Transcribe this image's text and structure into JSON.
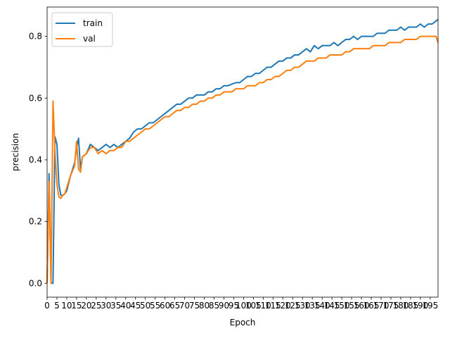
{
  "chart_data": {
    "type": "line",
    "title": "",
    "xlabel": "Epoch",
    "ylabel": "precision",
    "xlim": [
      0,
      199
    ],
    "ylim": [
      -0.045,
      0.895
    ],
    "x_ticks": [
      0,
      5,
      10,
      15,
      20,
      25,
      30,
      35,
      40,
      45,
      50,
      55,
      60,
      65,
      70,
      75,
      80,
      85,
      90,
      95,
      100,
      105,
      110,
      115,
      120,
      125,
      130,
      135,
      140,
      145,
      150,
      155,
      160,
      165,
      170,
      175,
      180,
      185,
      190,
      195
    ],
    "y_ticks": [
      0.0,
      0.2,
      0.4,
      0.6,
      0.8
    ],
    "y_tick_labels": [
      "0.0",
      "0.2",
      "0.4",
      "0.6",
      "0.8"
    ],
    "legend_position": "upper-left",
    "grid": false,
    "series": [
      {
        "name": "train",
        "color": "#1f77b4",
        "x": [
          0,
          1,
          2,
          3,
          4,
          5,
          6,
          7,
          8,
          9,
          10,
          12,
          14,
          15,
          16,
          17,
          18,
          20,
          22,
          24,
          26,
          28,
          30,
          32,
          34,
          36,
          38,
          40,
          42,
          44,
          46,
          48,
          50,
          52,
          54,
          56,
          58,
          60,
          62,
          64,
          66,
          68,
          70,
          72,
          74,
          76,
          78,
          80,
          82,
          84,
          86,
          88,
          90,
          92,
          94,
          96,
          98,
          100,
          102,
          104,
          106,
          108,
          110,
          112,
          114,
          116,
          118,
          120,
          122,
          124,
          126,
          128,
          130,
          132,
          134,
          136,
          138,
          140,
          142,
          144,
          146,
          148,
          150,
          152,
          154,
          156,
          158,
          160,
          162,
          164,
          166,
          168,
          170,
          172,
          174,
          176,
          178,
          180,
          182,
          184,
          186,
          188,
          190,
          192,
          194,
          196,
          198,
          199
        ],
        "y": [
          0.0,
          0.355,
          0.0,
          0.0,
          0.475,
          0.45,
          0.32,
          0.285,
          0.285,
          0.29,
          0.3,
          0.35,
          0.39,
          0.44,
          0.47,
          0.37,
          0.41,
          0.42,
          0.45,
          0.44,
          0.43,
          0.44,
          0.45,
          0.44,
          0.45,
          0.44,
          0.45,
          0.46,
          0.47,
          0.49,
          0.5,
          0.5,
          0.51,
          0.52,
          0.52,
          0.53,
          0.54,
          0.55,
          0.56,
          0.57,
          0.58,
          0.58,
          0.59,
          0.6,
          0.6,
          0.61,
          0.61,
          0.61,
          0.62,
          0.62,
          0.63,
          0.63,
          0.64,
          0.64,
          0.645,
          0.65,
          0.65,
          0.66,
          0.67,
          0.67,
          0.68,
          0.68,
          0.69,
          0.7,
          0.7,
          0.71,
          0.72,
          0.72,
          0.73,
          0.73,
          0.74,
          0.74,
          0.75,
          0.76,
          0.75,
          0.77,
          0.76,
          0.77,
          0.77,
          0.77,
          0.78,
          0.77,
          0.78,
          0.79,
          0.79,
          0.8,
          0.79,
          0.8,
          0.8,
          0.8,
          0.8,
          0.81,
          0.81,
          0.81,
          0.82,
          0.82,
          0.82,
          0.83,
          0.82,
          0.83,
          0.83,
          0.83,
          0.84,
          0.83,
          0.84,
          0.84,
          0.85,
          0.855
        ]
      },
      {
        "name": "val",
        "color": "#ff7f0e",
        "x": [
          0,
          1,
          2,
          3,
          4,
          5,
          6,
          7,
          8,
          9,
          10,
          12,
          14,
          15,
          16,
          17,
          18,
          20,
          22,
          24,
          26,
          28,
          30,
          32,
          34,
          36,
          38,
          40,
          42,
          44,
          46,
          48,
          50,
          52,
          54,
          56,
          58,
          60,
          62,
          64,
          66,
          68,
          70,
          72,
          74,
          76,
          78,
          80,
          82,
          84,
          86,
          88,
          90,
          92,
          94,
          96,
          98,
          100,
          102,
          104,
          106,
          108,
          110,
          112,
          114,
          116,
          118,
          120,
          122,
          124,
          126,
          128,
          130,
          132,
          134,
          136,
          138,
          140,
          142,
          144,
          146,
          148,
          150,
          152,
          154,
          156,
          158,
          160,
          162,
          164,
          166,
          168,
          170,
          172,
          174,
          176,
          178,
          180,
          182,
          184,
          186,
          188,
          190,
          192,
          194,
          196,
          198,
          199
        ],
        "y": [
          0.0,
          0.33,
          0.0,
          0.59,
          0.43,
          0.32,
          0.28,
          0.275,
          0.285,
          0.29,
          0.31,
          0.35,
          0.38,
          0.46,
          0.37,
          0.36,
          0.41,
          0.42,
          0.44,
          0.44,
          0.42,
          0.43,
          0.42,
          0.43,
          0.43,
          0.44,
          0.44,
          0.46,
          0.46,
          0.47,
          0.48,
          0.49,
          0.5,
          0.5,
          0.51,
          0.52,
          0.53,
          0.54,
          0.54,
          0.55,
          0.56,
          0.56,
          0.57,
          0.57,
          0.58,
          0.58,
          0.59,
          0.59,
          0.6,
          0.6,
          0.61,
          0.61,
          0.62,
          0.62,
          0.62,
          0.63,
          0.63,
          0.63,
          0.64,
          0.64,
          0.64,
          0.65,
          0.65,
          0.66,
          0.66,
          0.67,
          0.67,
          0.68,
          0.69,
          0.69,
          0.7,
          0.7,
          0.71,
          0.72,
          0.72,
          0.72,
          0.73,
          0.73,
          0.73,
          0.74,
          0.74,
          0.74,
          0.74,
          0.75,
          0.75,
          0.76,
          0.76,
          0.76,
          0.76,
          0.76,
          0.77,
          0.77,
          0.77,
          0.77,
          0.78,
          0.78,
          0.78,
          0.78,
          0.79,
          0.79,
          0.79,
          0.79,
          0.8,
          0.8,
          0.8,
          0.8,
          0.8,
          0.78
        ]
      }
    ]
  }
}
